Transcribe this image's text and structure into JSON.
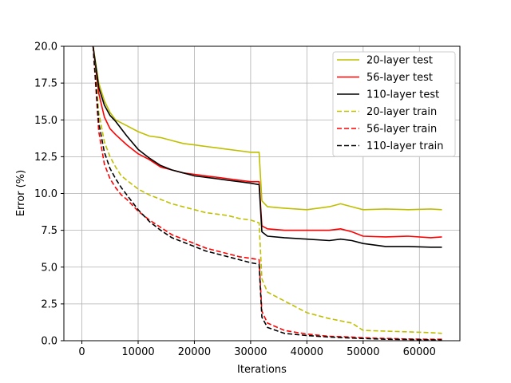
{
  "chart_data": {
    "type": "line",
    "title": "",
    "xlabel": "Iterations",
    "ylabel": "Error (%)",
    "xlim": [
      -3200,
      67200
    ],
    "ylim": [
      0,
      20
    ],
    "xticks": [
      0,
      10000,
      20000,
      30000,
      40000,
      50000,
      60000
    ],
    "xtick_labels": [
      "0",
      "10000",
      "20000",
      "30000",
      "40000",
      "50000",
      "60000"
    ],
    "yticks": [
      0,
      2.5,
      5,
      7.5,
      10,
      12.5,
      15,
      17.5,
      20
    ],
    "ytick_labels": [
      "0.0",
      "2.5",
      "5.0",
      "7.5",
      "10.0",
      "12.5",
      "15.0",
      "17.5",
      "20.0"
    ],
    "grid": true,
    "legend_position": "top-right",
    "series": [
      {
        "name": "20-layer test",
        "color": "#bfbf00",
        "dash": "solid",
        "x": [
          2000,
          3000,
          4000,
          5000,
          6000,
          8000,
          10000,
          12000,
          14000,
          16000,
          18000,
          20000,
          22000,
          24000,
          26000,
          28000,
          30000,
          31500,
          32000,
          33000,
          36000,
          40000,
          44000,
          46000,
          48000,
          50000,
          54000,
          58000,
          62000,
          64000
        ],
        "y": [
          20,
          17.5,
          16.3,
          15.5,
          15.0,
          14.6,
          14.2,
          13.9,
          13.8,
          13.6,
          13.4,
          13.3,
          13.2,
          13.1,
          13.0,
          12.9,
          12.8,
          12.8,
          9.5,
          9.1,
          9.0,
          8.9,
          9.1,
          9.3,
          9.1,
          8.9,
          8.95,
          8.9,
          8.95,
          8.9
        ]
      },
      {
        "name": "56-layer test",
        "color": "#ff0000",
        "dash": "solid",
        "x": [
          2000,
          3000,
          4000,
          5000,
          6000,
          8000,
          10000,
          12000,
          14000,
          16000,
          18000,
          20000,
          22000,
          24000,
          26000,
          28000,
          30000,
          31500,
          32000,
          33000,
          36000,
          40000,
          44000,
          46000,
          48000,
          50000,
          54000,
          58000,
          62000,
          64000
        ],
        "y": [
          20,
          16.8,
          15.2,
          14.4,
          14.0,
          13.3,
          12.7,
          12.3,
          11.8,
          11.6,
          11.4,
          11.3,
          11.2,
          11.1,
          11.0,
          10.9,
          10.8,
          10.8,
          7.8,
          7.6,
          7.5,
          7.5,
          7.5,
          7.6,
          7.4,
          7.1,
          7.05,
          7.1,
          7.0,
          7.05
        ]
      },
      {
        "name": "110-layer test",
        "color": "#000000",
        "dash": "solid",
        "x": [
          2000,
          3000,
          4000,
          5000,
          6000,
          8000,
          10000,
          12000,
          14000,
          16000,
          18000,
          20000,
          22000,
          24000,
          26000,
          28000,
          30000,
          31500,
          32000,
          33000,
          36000,
          40000,
          44000,
          46000,
          48000,
          50000,
          54000,
          58000,
          62000,
          64000
        ],
        "y": [
          20,
          17.2,
          16.0,
          15.3,
          14.9,
          13.9,
          13.0,
          12.4,
          11.9,
          11.6,
          11.4,
          11.2,
          11.1,
          11.0,
          10.9,
          10.8,
          10.7,
          10.6,
          7.4,
          7.1,
          7.0,
          6.9,
          6.8,
          6.9,
          6.8,
          6.6,
          6.4,
          6.4,
          6.35,
          6.35
        ]
      },
      {
        "name": "20-layer train",
        "color": "#bfbf00",
        "dash": "dashed",
        "x": [
          2000,
          3000,
          4000,
          5000,
          6000,
          7000,
          8000,
          10000,
          12000,
          14000,
          16000,
          18000,
          20000,
          22000,
          24000,
          26000,
          28000,
          30000,
          31500,
          32000,
          33000,
          36000,
          40000,
          44000,
          48000,
          50000,
          54000,
          58000,
          62000,
          64000
        ],
        "y": [
          20,
          15.5,
          13.5,
          12.5,
          11.8,
          11.2,
          10.9,
          10.3,
          9.9,
          9.6,
          9.3,
          9.1,
          8.9,
          8.7,
          8.6,
          8.5,
          8.3,
          8.2,
          8.0,
          4.2,
          3.3,
          2.7,
          1.9,
          1.5,
          1.2,
          0.7,
          0.65,
          0.6,
          0.55,
          0.5
        ]
      },
      {
        "name": "56-layer train",
        "color": "#ff0000",
        "dash": "dashed",
        "x": [
          2000,
          3000,
          4000,
          5000,
          6000,
          7000,
          8000,
          10000,
          12000,
          14000,
          16000,
          18000,
          20000,
          22000,
          24000,
          26000,
          28000,
          30000,
          31500,
          32000,
          33000,
          36000,
          40000,
          44000,
          48000,
          50000,
          54000,
          58000,
          62000,
          64000
        ],
        "y": [
          20,
          14.2,
          12.0,
          11.0,
          10.4,
          9.9,
          9.6,
          8.8,
          8.2,
          7.7,
          7.2,
          6.9,
          6.6,
          6.3,
          6.1,
          5.9,
          5.7,
          5.6,
          5.5,
          2.0,
          1.2,
          0.7,
          0.45,
          0.3,
          0.25,
          0.2,
          0.15,
          0.12,
          0.1,
          0.1
        ]
      },
      {
        "name": "110-layer train",
        "color": "#000000",
        "dash": "dashed",
        "x": [
          2000,
          3000,
          4000,
          5000,
          6000,
          7000,
          8000,
          10000,
          12000,
          14000,
          16000,
          18000,
          20000,
          22000,
          24000,
          26000,
          28000,
          30000,
          31500,
          32000,
          33000,
          36000,
          40000,
          44000,
          48000,
          50000,
          54000,
          58000,
          62000,
          64000
        ],
        "y": [
          20,
          14.8,
          12.8,
          11.7,
          11.0,
          10.4,
          9.9,
          8.9,
          8.1,
          7.5,
          7.0,
          6.7,
          6.4,
          6.1,
          5.9,
          5.7,
          5.5,
          5.3,
          5.2,
          1.6,
          0.9,
          0.5,
          0.35,
          0.25,
          0.18,
          0.15,
          0.1,
          0.08,
          0.06,
          0.05
        ]
      }
    ]
  }
}
